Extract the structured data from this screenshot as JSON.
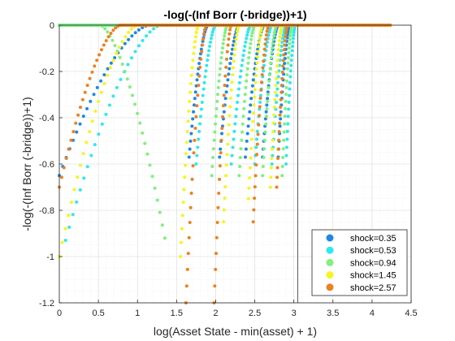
{
  "chart_data": {
    "type": "scatter",
    "title": "-log(-(Inf Borr (-bridge))+1)",
    "xlabel": "log(Asset State - min(asset) + 1)",
    "ylabel": "-log(-(Inf Borr (-bridge))+1)",
    "xlim": [
      0,
      4.5
    ],
    "ylim": [
      -1.2,
      0
    ],
    "xticks": [
      "0",
      "0.5",
      "1",
      "1.5",
      "2",
      "2.5",
      "3",
      "3.5",
      "4",
      "4.5"
    ],
    "yticks": [
      "0",
      "-0.2",
      "-0.4",
      "-0.6",
      "-0.8",
      "-1",
      "-1.2"
    ],
    "grid": "on (major and minor)",
    "legend_position": "bottom-right",
    "vertical_line_x": 3.05,
    "series": [
      {
        "name": "shock=0.35",
        "color": "#1e88e5",
        "curves": [
          {
            "x0": 0.0,
            "y0": -0.65,
            "x1": 1.15,
            "y1": 0.0
          },
          {
            "x0": 1.66,
            "y0": -0.57,
            "x1": 1.9,
            "y1": 0.0
          },
          {
            "x0": 2.05,
            "y0": -0.57,
            "x1": 2.3,
            "y1": 0.0
          },
          {
            "x0": 2.38,
            "y0": -0.57,
            "x1": 2.62,
            "y1": 0.0
          },
          {
            "x0": 2.6,
            "y0": -0.57,
            "x1": 2.8,
            "y1": 0.0
          },
          {
            "x0": 2.8,
            "y0": -0.57,
            "x1": 2.95,
            "y1": 0.0
          }
        ],
        "flat": [
          0.0,
          4.25
        ]
      },
      {
        "name": "shock=0.53",
        "color": "#2ee8f0",
        "curves": [
          {
            "x0": 0.08,
            "y0": -0.93,
            "x1": 1.3,
            "y1": 0.0
          },
          {
            "x0": 1.75,
            "y0": -0.6,
            "x1": 2.0,
            "y1": 0.0
          },
          {
            "x0": 2.2,
            "y0": -0.6,
            "x1": 2.45,
            "y1": 0.0
          },
          {
            "x0": 2.5,
            "y0": -0.6,
            "x1": 2.72,
            "y1": 0.0
          },
          {
            "x0": 2.72,
            "y0": -0.6,
            "x1": 2.9,
            "y1": 0.0
          },
          {
            "x0": 2.9,
            "y0": -0.6,
            "x1": 3.02,
            "y1": 0.0
          }
        ],
        "flat": [
          0.0,
          4.25
        ]
      },
      {
        "name": "shock=0.94",
        "color": "#80f080",
        "curves": [
          {
            "x0": 1.35,
            "y0": -0.92,
            "x1": 0.52,
            "y1": 0.0
          },
          {
            "x0": 1.95,
            "y0": -0.65,
            "x1": 2.15,
            "y1": 0.0
          },
          {
            "x0": 2.3,
            "y0": -0.65,
            "x1": 2.5,
            "y1": 0.0
          },
          {
            "x0": 2.6,
            "y0": -0.65,
            "x1": 2.78,
            "y1": 0.0
          },
          {
            "x0": 2.85,
            "y0": -0.65,
            "x1": 2.98,
            "y1": 0.0
          }
        ],
        "flat": [
          0.0,
          4.25
        ]
      },
      {
        "name": "shock=1.45",
        "color": "#f5f520",
        "curves": [
          {
            "x0": 0.0,
            "y0": -1.0,
            "x1": 1.0,
            "y1": 0.0
          },
          {
            "x0": 1.55,
            "y0": -1.0,
            "x1": 1.78,
            "y1": 0.0
          },
          {
            "x0": 2.1,
            "y0": -0.85,
            "x1": 2.3,
            "y1": 0.0
          },
          {
            "x0": 2.42,
            "y0": -0.75,
            "x1": 2.6,
            "y1": 0.0
          },
          {
            "x0": 2.7,
            "y0": -0.7,
            "x1": 2.85,
            "y1": 0.0
          }
        ],
        "flat": [
          0.85,
          4.25
        ]
      },
      {
        "name": "shock=2.57",
        "color": "#ef8020",
        "curves": [
          {
            "x0": 0.0,
            "y0": -0.7,
            "x1": 0.78,
            "y1": 0.0
          },
          {
            "x0": 1.62,
            "y0": -1.2,
            "x1": 1.88,
            "y1": 0.0
          },
          {
            "x0": 1.98,
            "y0": -1.2,
            "x1": 2.2,
            "y1": 0.0
          },
          {
            "x0": 2.48,
            "y0": -0.85,
            "x1": 2.68,
            "y1": 0.0
          },
          {
            "x0": 2.78,
            "y0": -0.7,
            "x1": 2.92,
            "y1": 0.0
          }
        ],
        "flat": [
          0.78,
          4.25
        ]
      }
    ]
  }
}
